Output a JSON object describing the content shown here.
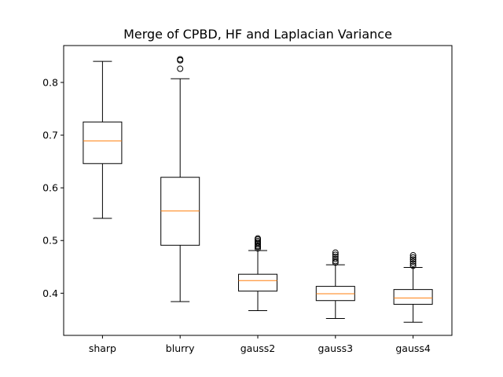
{
  "chart_data": {
    "type": "box",
    "title": "Merge of CPBD, HF and Laplacian Variance",
    "xlabel": "",
    "ylabel": "",
    "ylim": [
      0.32,
      0.87
    ],
    "yticks": [
      0.4,
      0.5,
      0.6,
      0.7,
      0.8
    ],
    "ytick_labels": [
      "0.4",
      "0.5",
      "0.6",
      "0.7",
      "0.8"
    ],
    "grid": false,
    "colors": {
      "box": "#000000",
      "median": "#ff7f0e"
    },
    "categories": [
      "sharp",
      "blurry",
      "gauss2",
      "gauss3",
      "gauss4"
    ],
    "boxes": [
      {
        "whislo": 0.542,
        "q1": 0.646,
        "med": 0.689,
        "q3": 0.725,
        "whishi": 0.84,
        "fliers": []
      },
      {
        "whislo": 0.384,
        "q1": 0.491,
        "med": 0.556,
        "q3": 0.62,
        "whishi": 0.807,
        "fliers": [
          0.826,
          0.842,
          0.844
        ]
      },
      {
        "whislo": 0.367,
        "q1": 0.404,
        "med": 0.424,
        "q3": 0.436,
        "whishi": 0.481,
        "fliers": [
          0.485,
          0.488,
          0.49,
          0.493,
          0.496,
          0.499,
          0.502,
          0.504
        ]
      },
      {
        "whislo": 0.352,
        "q1": 0.386,
        "med": 0.399,
        "q3": 0.413,
        "whishi": 0.454,
        "fliers": [
          0.458,
          0.461,
          0.465,
          0.469,
          0.473,
          0.477
        ]
      },
      {
        "whislo": 0.345,
        "q1": 0.379,
        "med": 0.391,
        "q3": 0.407,
        "whishi": 0.449,
        "fliers": [
          0.452,
          0.456,
          0.46,
          0.464,
          0.468,
          0.472
        ]
      }
    ]
  }
}
